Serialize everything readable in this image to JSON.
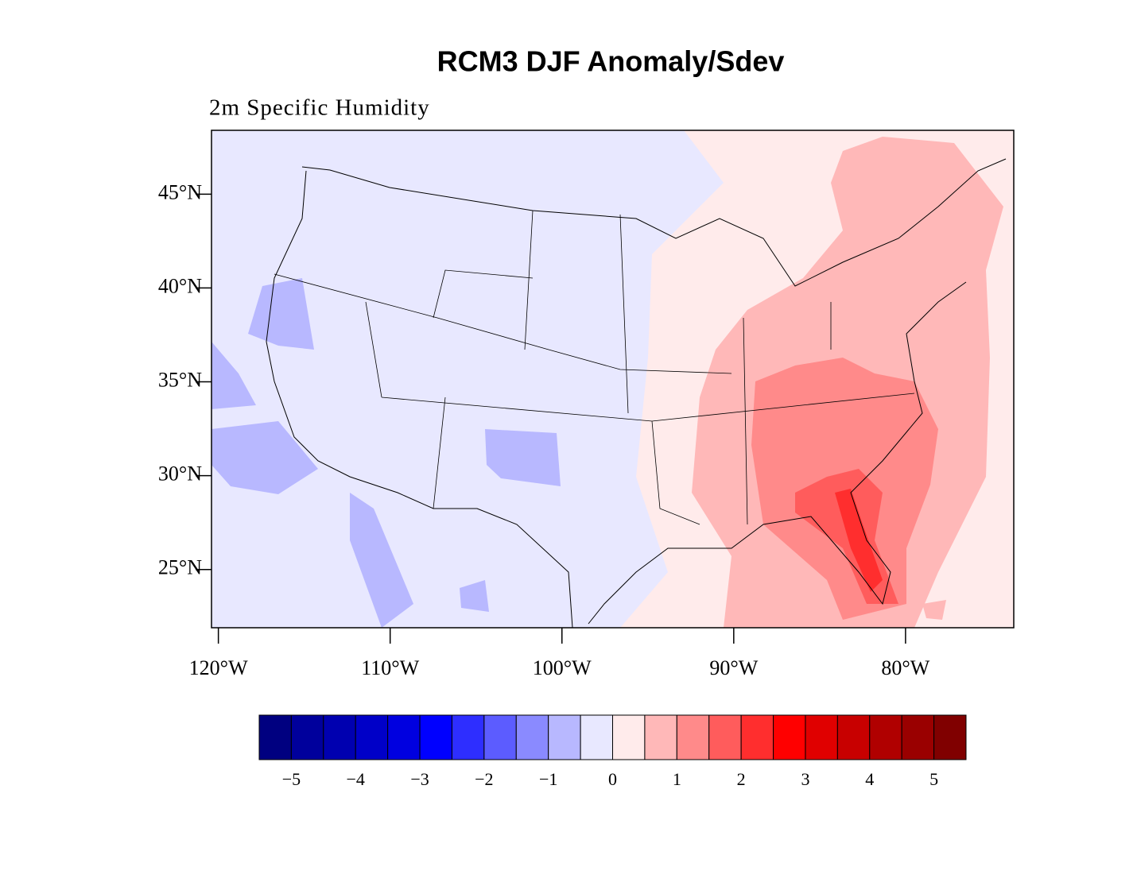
{
  "title": "RCM3 DJF Anomaly/Sdev",
  "subtitle": "2m Specific Humidity",
  "map": {
    "type": "filled-contour",
    "xlim": [
      -120.4,
      -73.7
    ],
    "ylim": [
      21.9,
      48.4
    ],
    "xticks": [
      {
        "value": -120,
        "label": "120°W"
      },
      {
        "value": -110,
        "label": "110°W"
      },
      {
        "value": -100,
        "label": "100°W"
      },
      {
        "value": -90,
        "label": "90°W"
      },
      {
        "value": -80,
        "label": "80°W"
      }
    ],
    "yticks": [
      {
        "value": 45,
        "label": "45°N"
      },
      {
        "value": 40,
        "label": "40°N"
      },
      {
        "value": 35,
        "label": "35°N"
      },
      {
        "value": 30,
        "label": "30°N"
      },
      {
        "value": 25,
        "label": "25°N"
      }
    ]
  },
  "colorbar": {
    "range": [
      -5.5,
      5.5
    ],
    "colors": [
      "#000080",
      "#00009c",
      "#0000b0",
      "#0000c8",
      "#0000e0",
      "#0000ff",
      "#2e2eff",
      "#5c5cff",
      "#8a8aff",
      "#b8b8ff",
      "#e8e8ff",
      "#ffebeb",
      "#ffb8b8",
      "#ff8a8a",
      "#ff5c5c",
      "#ff2e2e",
      "#ff0000",
      "#e00000",
      "#c80000",
      "#b00000",
      "#9a0000",
      "#800000"
    ],
    "ticks": [
      {
        "value": -5,
        "label": "−5"
      },
      {
        "value": -4,
        "label": "−4"
      },
      {
        "value": -3,
        "label": "−3"
      },
      {
        "value": -2,
        "label": "−2"
      },
      {
        "value": -1,
        "label": "−1"
      },
      0,
      1,
      2,
      3,
      4,
      5
    ]
  }
}
